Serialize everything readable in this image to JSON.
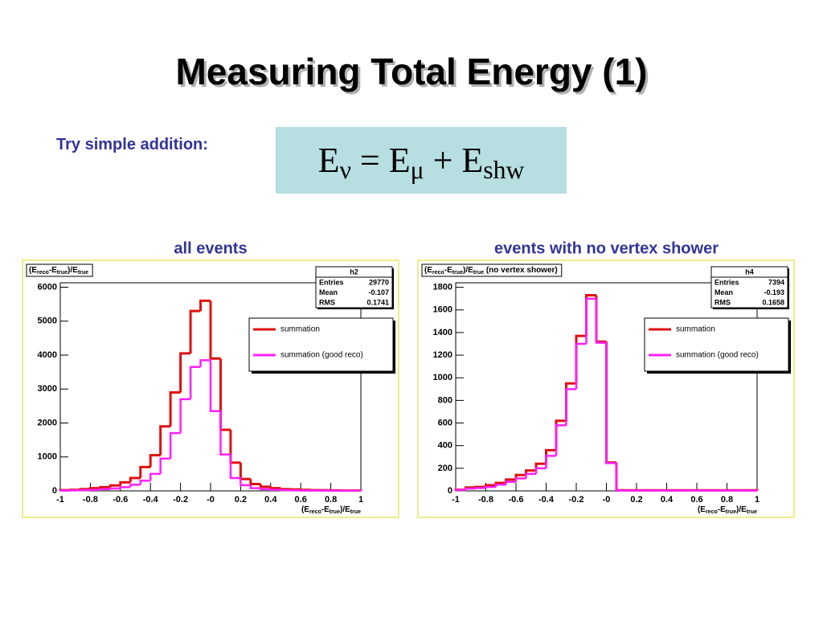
{
  "title": "Measuring Total Energy (1)",
  "intro": "Try simple addition:",
  "equation": [
    {
      "text": "E"
    },
    {
      "text": "ν",
      "sub": true
    },
    {
      "text": " = E"
    },
    {
      "text": "μ",
      "sub": true
    },
    {
      "text": " + E"
    },
    {
      "text": "shw",
      "sub": true
    }
  ],
  "chart_data": [
    {
      "type": "histogram",
      "caption": "all events",
      "title": [
        {
          "text": "(E"
        },
        {
          "text": "reco",
          "sub": true
        },
        {
          "text": "-E"
        },
        {
          "text": "true",
          "sub": true
        },
        {
          "text": ")/E"
        },
        {
          "text": "true",
          "sub": true
        }
      ],
      "xlabel": [
        {
          "text": "(E"
        },
        {
          "text": "reco",
          "sub": true
        },
        {
          "text": "-E"
        },
        {
          "text": "true",
          "sub": true
        },
        {
          "text": ")/E"
        },
        {
          "text": "true",
          "sub": true
        }
      ],
      "bins": [
        -1,
        -0.9333,
        -0.8667,
        -0.8,
        -0.7333,
        -0.6667,
        -0.6,
        -0.5333,
        -0.4667,
        -0.4,
        -0.3333,
        -0.2667,
        -0.2,
        -0.1333,
        -0.0667,
        0,
        0.0667,
        0.1333,
        0.2,
        0.2667,
        0.3333,
        0.4,
        0.4667,
        0.5333,
        0.6,
        0.6667,
        0.7333,
        0.8,
        0.8667,
        0.9333,
        1
      ],
      "xlim": [
        -1,
        1
      ],
      "xticks": [
        -1,
        -0.8,
        -0.6,
        -0.4,
        -0.2,
        {
          "value": 0,
          "label": "-0"
        },
        0.2,
        0.4,
        0.6,
        0.8,
        1
      ],
      "ylim": [
        0,
        6130
      ],
      "yticks": [
        0,
        1000,
        2000,
        3000,
        4000,
        5000,
        6000
      ],
      "series": [
        {
          "name": "summation",
          "color": "#e01010",
          "values": [
            20,
            30,
            50,
            80,
            110,
            160,
            250,
            380,
            700,
            1050,
            1900,
            2900,
            4050,
            5300,
            5600,
            3900,
            1800,
            830,
            350,
            200,
            120,
            80,
            50,
            40,
            30,
            20,
            20,
            15,
            10,
            10
          ]
        },
        {
          "name": "summation (good reco)",
          "color": "#ff20ff",
          "values": [
            10,
            15,
            20,
            30,
            50,
            70,
            110,
            180,
            300,
            500,
            950,
            1700,
            2700,
            3650,
            3850,
            2350,
            1070,
            380,
            170,
            80,
            50,
            30,
            20,
            15,
            10,
            10,
            8,
            5,
            5,
            5
          ]
        }
      ],
      "stats": {
        "name": "h2",
        "rows": [
          [
            "Entries",
            "29770"
          ],
          [
            "Mean",
            "-0.107"
          ],
          [
            "RMS",
            "0.1741"
          ]
        ]
      }
    },
    {
      "type": "histogram",
      "caption": "events with no vertex shower",
      "title": [
        {
          "text": "(E"
        },
        {
          "text": "reco",
          "sub": true
        },
        {
          "text": "-E"
        },
        {
          "text": "true",
          "sub": true
        },
        {
          "text": ")/E"
        },
        {
          "text": "true",
          "sub": true
        },
        {
          "text": "  (no vertex shower)"
        }
      ],
      "xlabel": [
        {
          "text": "(E"
        },
        {
          "text": "reco",
          "sub": true
        },
        {
          "text": "-E"
        },
        {
          "text": "true",
          "sub": true
        },
        {
          "text": ")/E"
        },
        {
          "text": "true",
          "sub": true
        }
      ],
      "bins": [
        -1,
        -0.9333,
        -0.8667,
        -0.8,
        -0.7333,
        -0.6667,
        -0.6,
        -0.5333,
        -0.4667,
        -0.4,
        -0.3333,
        -0.2667,
        -0.2,
        -0.1333,
        -0.0667,
        0,
        0.0667,
        0.1333,
        0.2,
        0.2667,
        0.3333,
        0.4,
        0.4667,
        0.5333,
        0.6,
        0.6667,
        0.7333,
        0.8,
        0.8667,
        0.9333,
        1
      ],
      "xlim": [
        -1,
        1
      ],
      "xticks": [
        -1,
        -0.8,
        -0.6,
        -0.4,
        -0.2,
        {
          "value": 0,
          "label": "-0"
        },
        0.2,
        0.4,
        0.6,
        0.8,
        1
      ],
      "ylim": [
        0,
        1840
      ],
      "yticks": [
        0,
        200,
        400,
        600,
        800,
        1000,
        1200,
        1400,
        1600,
        1800
      ],
      "series": [
        {
          "name": "summation",
          "color": "#e01010",
          "values": [
            10,
            30,
            35,
            50,
            70,
            100,
            140,
            180,
            240,
            360,
            620,
            950,
            1370,
            1730,
            1320,
            250,
            5,
            5,
            5,
            5,
            5,
            5,
            5,
            5,
            5,
            5,
            5,
            5,
            5,
            5
          ]
        },
        {
          "name": "summation (good reco)",
          "color": "#ff20ff",
          "values": [
            8,
            20,
            25,
            35,
            55,
            80,
            110,
            150,
            200,
            310,
            580,
            900,
            1300,
            1700,
            1310,
            245,
            3,
            3,
            3,
            3,
            3,
            3,
            3,
            3,
            3,
            3,
            3,
            3,
            3,
            3
          ]
        }
      ],
      "stats": {
        "name": "h4",
        "rows": [
          [
            "Entries",
            "7394"
          ],
          [
            "Mean",
            "-0.193"
          ],
          [
            "RMS",
            "0.1658"
          ]
        ]
      }
    }
  ]
}
